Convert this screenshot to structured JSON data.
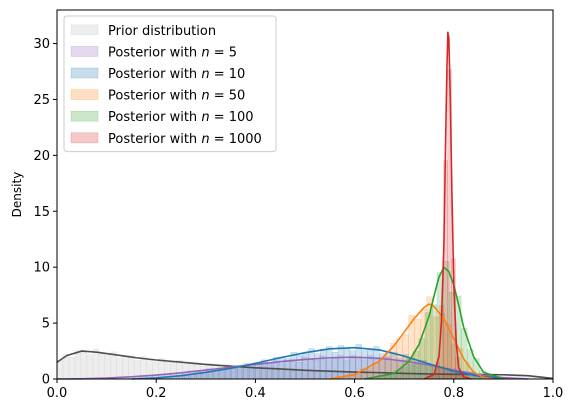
{
  "chart_data": {
    "type": "area",
    "title": "",
    "xlabel": "",
    "ylabel": "Density",
    "xlim": [
      0.0,
      1.0
    ],
    "ylim": [
      0,
      33
    ],
    "xticks": [
      0.0,
      0.2,
      0.4,
      0.6,
      0.8,
      1.0
    ],
    "xtick_labels": [
      "0.0",
      "0.2",
      "0.4",
      "0.6",
      "0.8",
      "1.0"
    ],
    "yticks": [
      0,
      5,
      10,
      15,
      20,
      25,
      30
    ],
    "ytick_labels": [
      "0",
      "5",
      "10",
      "15",
      "20",
      "25",
      "30"
    ],
    "grid": false,
    "legend_position": "top-left",
    "series": [
      {
        "name": "Prior distribution",
        "name_prefix": "Prior distribution",
        "name_n": "",
        "color": "#4d4d4d",
        "fill": "#bfbfbf",
        "x": [
          0.0,
          0.02,
          0.05,
          0.08,
          0.12,
          0.16,
          0.2,
          0.25,
          0.3,
          0.35,
          0.4,
          0.45,
          0.5,
          0.55,
          0.6,
          0.65,
          0.7,
          0.75,
          0.8,
          0.85,
          0.9,
          0.95,
          1.0
        ],
        "values": [
          1.5,
          2.1,
          2.5,
          2.4,
          2.15,
          1.9,
          1.7,
          1.5,
          1.3,
          1.15,
          1.0,
          0.9,
          0.78,
          0.7,
          0.62,
          0.57,
          0.5,
          0.45,
          0.42,
          0.4,
          0.38,
          0.3,
          0.05
        ]
      },
      {
        "name": "Posterior with n = 5",
        "name_prefix": "Posterior with ",
        "name_n": "5",
        "color": "#9467bd",
        "fill": "#9467bd",
        "x": [
          0.0,
          0.05,
          0.1,
          0.15,
          0.2,
          0.25,
          0.3,
          0.35,
          0.4,
          0.45,
          0.5,
          0.55,
          0.6,
          0.65,
          0.7,
          0.75,
          0.8,
          0.85,
          0.9,
          0.95
        ],
        "values": [
          0.0,
          0.02,
          0.08,
          0.2,
          0.35,
          0.55,
          0.8,
          1.05,
          1.3,
          1.55,
          1.75,
          1.9,
          1.95,
          1.85,
          1.6,
          1.25,
          0.8,
          0.4,
          0.12,
          0.0
        ]
      },
      {
        "name": "Posterior with n = 10",
        "name_prefix": "Posterior with ",
        "name_n": "10",
        "color": "#1f77b4",
        "fill": "#1f77b4",
        "x": [
          0.15,
          0.2,
          0.25,
          0.3,
          0.35,
          0.4,
          0.45,
          0.5,
          0.55,
          0.6,
          0.65,
          0.7,
          0.75,
          0.8,
          0.85,
          0.9
        ],
        "values": [
          0.0,
          0.1,
          0.3,
          0.6,
          0.95,
          1.4,
          1.9,
          2.35,
          2.7,
          2.8,
          2.6,
          2.05,
          1.35,
          0.7,
          0.25,
          0.05
        ]
      },
      {
        "name": "Posterior with n = 50",
        "name_prefix": "Posterior with ",
        "name_n": "50",
        "color": "#ff7f0e",
        "fill": "#ff7f0e",
        "x": [
          0.55,
          0.6,
          0.65,
          0.68,
          0.7,
          0.72,
          0.74,
          0.75,
          0.76,
          0.78,
          0.8,
          0.82,
          0.84,
          0.86,
          0.88
        ],
        "values": [
          0.0,
          0.4,
          1.6,
          3.0,
          4.2,
          5.4,
          6.4,
          6.7,
          6.5,
          5.4,
          3.6,
          1.8,
          0.6,
          0.15,
          0.0
        ]
      },
      {
        "name": "Posterior with n = 100",
        "name_prefix": "Posterior with ",
        "name_n": "100",
        "color": "#2ca02c",
        "fill": "#2ca02c",
        "x": [
          0.62,
          0.68,
          0.71,
          0.73,
          0.75,
          0.76,
          0.77,
          0.78,
          0.79,
          0.8,
          0.81,
          0.82,
          0.84,
          0.86,
          0.9
        ],
        "values": [
          0.0,
          0.5,
          1.6,
          3.1,
          5.6,
          7.4,
          9.1,
          10.0,
          9.6,
          8.4,
          6.6,
          4.6,
          2.0,
          0.6,
          0.0
        ]
      },
      {
        "name": "Posterior with n = 1000",
        "name_prefix": "Posterior with ",
        "name_n": "1000",
        "color": "#d62728",
        "fill": "#d62728",
        "x": [
          0.74,
          0.76,
          0.77,
          0.775,
          0.78,
          0.783,
          0.786,
          0.788,
          0.79,
          0.793,
          0.796,
          0.8,
          0.805,
          0.81,
          0.82,
          0.835
        ],
        "values": [
          0.0,
          0.4,
          2.0,
          5.0,
          12.0,
          20.0,
          27.5,
          31.0,
          30.5,
          25.0,
          17.0,
          8.5,
          3.2,
          1.0,
          0.2,
          0.0
        ]
      }
    ]
  }
}
